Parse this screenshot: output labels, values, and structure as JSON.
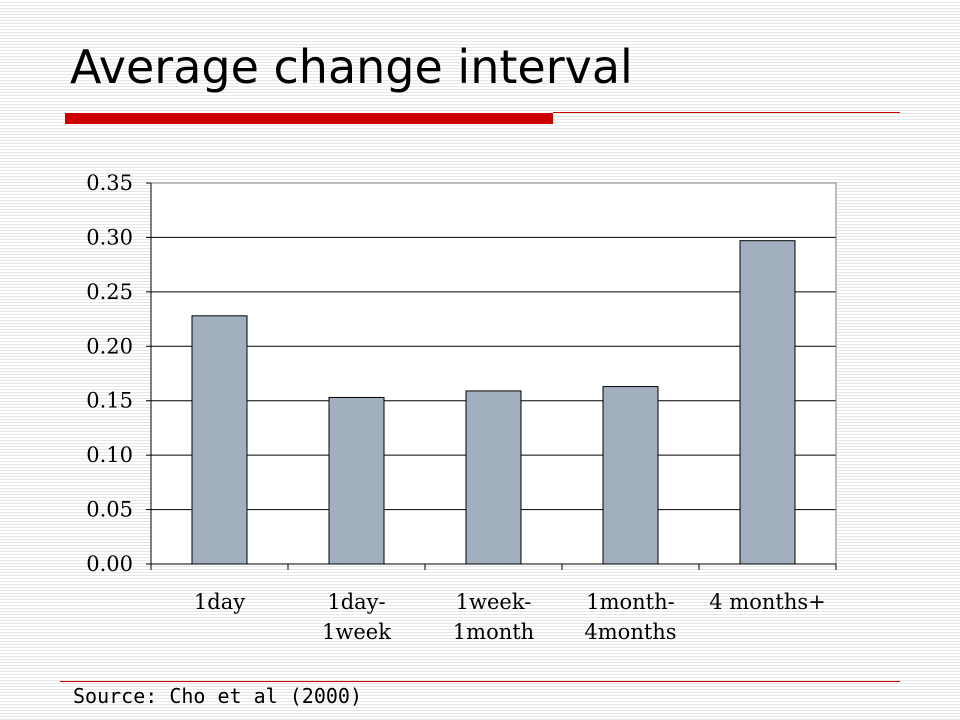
{
  "slide": {
    "title": "Average change interval",
    "source": "Source: Cho et al (2000)",
    "accent_color": "#cc0000"
  },
  "chart_data": {
    "type": "bar",
    "title": "",
    "xlabel": "",
    "ylabel": "",
    "categories": [
      [
        "1day"
      ],
      [
        "1day-",
        "1week"
      ],
      [
        "1week-",
        "1month"
      ],
      [
        "1month-",
        "4months"
      ],
      [
        "4 months+"
      ]
    ],
    "values": [
      0.228,
      0.153,
      0.159,
      0.163,
      0.297
    ],
    "ylim": [
      0,
      0.35
    ],
    "yticks": [
      "0.00",
      "0.05",
      "0.10",
      "0.15",
      "0.20",
      "0.25",
      "0.30",
      "0.35"
    ],
    "grid": true,
    "legend": false,
    "bar_color": "#a2afbf"
  }
}
